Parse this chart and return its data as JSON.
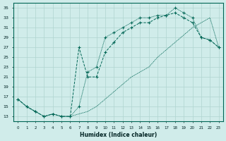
{
  "xlabel": "Humidex (Indice chaleur)",
  "bg_color": "#d0ecea",
  "grid_color": "#b0d4d0",
  "line_color": "#006655",
  "xlim": [
    -0.5,
    23.5
  ],
  "ylim": [
    12,
    36
  ],
  "xticks": [
    0,
    1,
    2,
    3,
    4,
    5,
    6,
    7,
    8,
    9,
    10,
    11,
    12,
    13,
    14,
    15,
    16,
    17,
    18,
    19,
    20,
    21,
    22,
    23
  ],
  "yticks": [
    13,
    15,
    17,
    19,
    21,
    23,
    25,
    27,
    29,
    31,
    33,
    35
  ],
  "curve1_x": [
    0,
    1,
    2,
    3,
    4,
    5,
    6,
    7,
    8,
    9,
    10,
    11,
    12,
    13,
    14,
    15,
    16,
    17,
    18,
    19,
    20,
    21,
    22,
    23
  ],
  "curve1_y": [
    16.5,
    15,
    14,
    13,
    13.5,
    13,
    13,
    15,
    22,
    23,
    29,
    30,
    31,
    32,
    33,
    33,
    33.5,
    33.5,
    35,
    34,
    33,
    29,
    28.5,
    27
  ],
  "curve2_x": [
    0,
    1,
    2,
    3,
    4,
    5,
    6,
    7,
    8,
    9,
    10,
    11,
    12,
    13,
    14,
    15,
    16,
    17,
    18,
    19,
    20,
    21,
    22,
    23
  ],
  "curve2_y": [
    16.5,
    15,
    14,
    13,
    13.5,
    13,
    13,
    27,
    21,
    21,
    26,
    28,
    30,
    31,
    32,
    32,
    33,
    33.5,
    34,
    33,
    32,
    29,
    28.5,
    27
  ],
  "curve3_x": [
    0,
    1,
    2,
    3,
    4,
    5,
    6,
    7,
    8,
    9,
    10,
    11,
    12,
    13,
    14,
    15,
    16,
    17,
    18,
    19,
    20,
    21,
    22,
    23
  ],
  "curve3_y": [
    16.5,
    15,
    14,
    13,
    13.5,
    13,
    13,
    13.5,
    14,
    15,
    16.5,
    18,
    19.5,
    21,
    22,
    23,
    25,
    26.5,
    28,
    29.5,
    31,
    32,
    33,
    27
  ]
}
